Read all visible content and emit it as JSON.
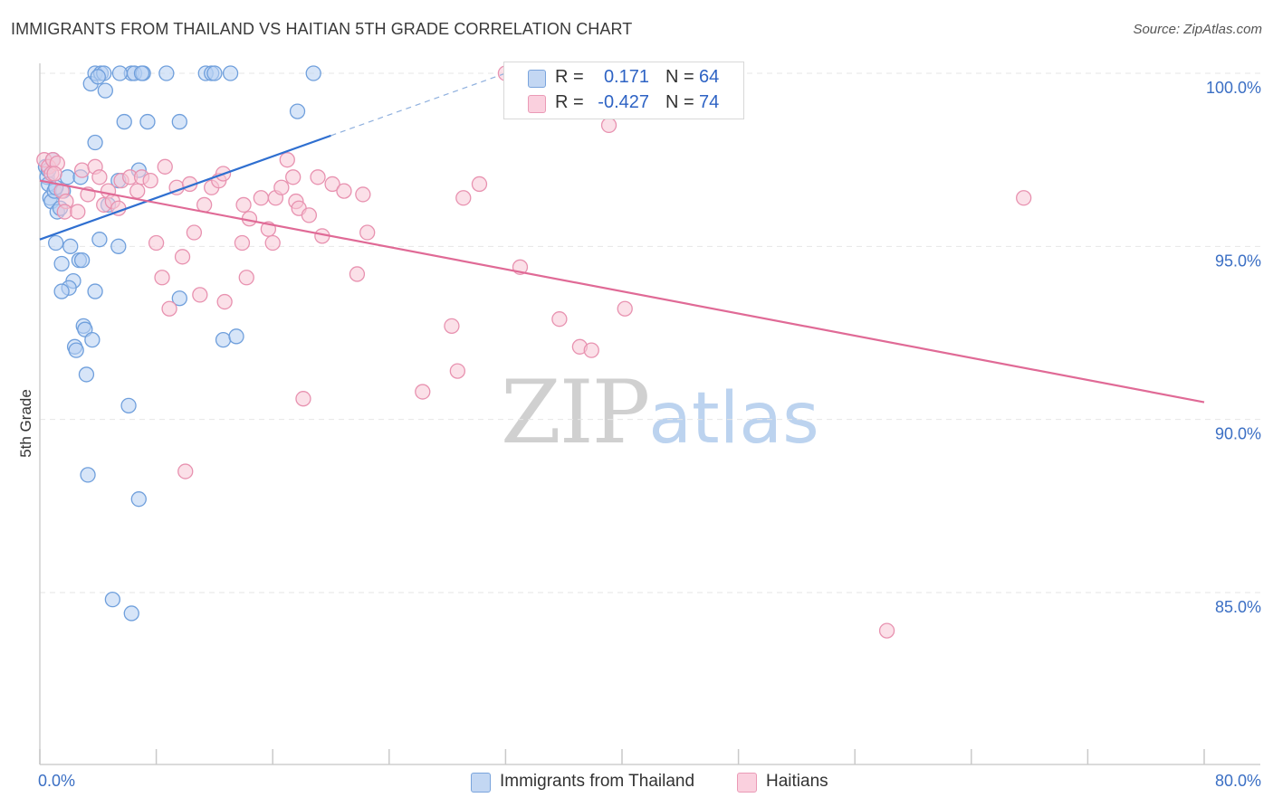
{
  "title": "IMMIGRANTS FROM THAILAND VS HAITIAN 5TH GRADE CORRELATION CHART",
  "source": "Source: ZipAtlas.com",
  "legend": {
    "rows": [
      {
        "r_label": "R =",
        "r_value": "0.171",
        "n_label": "N =",
        "n_value": "64"
      },
      {
        "r_label": "R =",
        "r_value": "-0.427",
        "n_label": "N =",
        "n_value": "74"
      }
    ]
  },
  "bottom_legend": [
    "Immigrants from Thailand",
    "Haitians"
  ],
  "watermark": {
    "zip": "ZIP",
    "atlas": "atlas"
  },
  "colors": {
    "blue_fill": "#b7d0f2",
    "blue_stroke": "#6f9fdc",
    "blue_line": "#2f6fd0",
    "pink_fill": "#f8c6d6",
    "pink_stroke": "#e892b0",
    "pink_line": "#e06a96",
    "grid": "#e6e6e6",
    "axis_text": "#3b6fc4"
  },
  "chart_data": {
    "type": "scatter",
    "title": "IMMIGRANTS FROM THAILAND VS HAITIAN 5TH GRADE CORRELATION CHART",
    "xlabel": "",
    "ylabel": "5th Grade",
    "xlim": [
      0,
      80
    ],
    "ylim": [
      80,
      100.5
    ],
    "x_tick_labels": [
      "0.0%",
      "80.0%"
    ],
    "y_ticks": [
      85,
      90,
      95,
      100
    ],
    "y_tick_labels": [
      "85.0%",
      "90.0%",
      "95.0%",
      "100.0%"
    ],
    "series": [
      {
        "name": "Immigrants from Thailand",
        "color": "#6f9fdc",
        "r": 0.171,
        "n": 64,
        "trend": {
          "x": [
            0,
            20
          ],
          "y": [
            95.2,
            98.2
          ],
          "dashed_to": [
            32,
            100.0
          ]
        },
        "points": [
          [
            0.4,
            97.3
          ],
          [
            0.5,
            97.0
          ],
          [
            0.6,
            96.8
          ],
          [
            0.7,
            96.4
          ],
          [
            0.8,
            96.3
          ],
          [
            0.6,
            97.2
          ],
          [
            1.0,
            96.6
          ],
          [
            1.2,
            96.0
          ],
          [
            1.4,
            96.1
          ],
          [
            1.1,
            95.1
          ],
          [
            1.6,
            96.6
          ],
          [
            1.9,
            97.0
          ],
          [
            2.8,
            97.0
          ],
          [
            1.5,
            94.5
          ],
          [
            2.1,
            95.0
          ],
          [
            2.7,
            94.6
          ],
          [
            2.9,
            94.6
          ],
          [
            2.3,
            94.0
          ],
          [
            2.0,
            93.8
          ],
          [
            1.5,
            93.7
          ],
          [
            3.8,
            93.7
          ],
          [
            3.0,
            92.7
          ],
          [
            3.1,
            92.6
          ],
          [
            3.6,
            92.3
          ],
          [
            2.4,
            92.1
          ],
          [
            2.5,
            92.0
          ],
          [
            3.2,
            91.3
          ],
          [
            4.1,
            95.2
          ],
          [
            5.4,
            95.0
          ],
          [
            3.3,
            88.4
          ],
          [
            6.8,
            87.7
          ],
          [
            5.0,
            84.8
          ],
          [
            6.3,
            84.4
          ],
          [
            6.1,
            90.4
          ],
          [
            9.6,
            93.5
          ],
          [
            12.6,
            92.3
          ],
          [
            13.5,
            92.4
          ],
          [
            3.5,
            99.7
          ],
          [
            3.8,
            100.0
          ],
          [
            4.2,
            100.0
          ],
          [
            4.4,
            100.0
          ],
          [
            6.3,
            100.0
          ],
          [
            6.5,
            100.0
          ],
          [
            7.1,
            100.0
          ],
          [
            8.7,
            100.0
          ],
          [
            11.4,
            100.0
          ],
          [
            11.8,
            100.0
          ],
          [
            13.1,
            100.0
          ],
          [
            18.8,
            100.0
          ],
          [
            4.5,
            99.5
          ],
          [
            5.8,
            98.6
          ],
          [
            7.4,
            98.6
          ],
          [
            9.6,
            98.6
          ],
          [
            17.7,
            98.9
          ],
          [
            3.8,
            98.0
          ],
          [
            6.8,
            97.2
          ],
          [
            5.4,
            96.9
          ],
          [
            4.7,
            96.2
          ],
          [
            1.1,
            96.7
          ],
          [
            0.9,
            97.5
          ],
          [
            5.5,
            100.0
          ],
          [
            4.0,
            99.9
          ],
          [
            7.0,
            100.0
          ],
          [
            12.0,
            100.0
          ]
        ]
      },
      {
        "name": "Haitians",
        "color": "#e892b0",
        "r": -0.427,
        "n": 74,
        "trend": {
          "x": [
            0,
            80
          ],
          "y": [
            96.9,
            90.5
          ]
        },
        "points": [
          [
            0.3,
            97.5
          ],
          [
            0.6,
            97.3
          ],
          [
            0.9,
            97.5
          ],
          [
            1.2,
            97.4
          ],
          [
            0.8,
            97.1
          ],
          [
            1.5,
            96.6
          ],
          [
            1.8,
            96.3
          ],
          [
            1.7,
            96.0
          ],
          [
            2.6,
            96.0
          ],
          [
            2.9,
            97.2
          ],
          [
            3.3,
            96.5
          ],
          [
            3.8,
            97.3
          ],
          [
            4.1,
            97.0
          ],
          [
            4.4,
            96.2
          ],
          [
            4.7,
            96.6
          ],
          [
            5.0,
            96.3
          ],
          [
            5.4,
            96.1
          ],
          [
            5.6,
            96.9
          ],
          [
            6.2,
            97.0
          ],
          [
            6.7,
            96.6
          ],
          [
            7.0,
            97.0
          ],
          [
            7.6,
            96.9
          ],
          [
            8.6,
            97.3
          ],
          [
            9.4,
            96.7
          ],
          [
            10.3,
            96.8
          ],
          [
            11.3,
            96.2
          ],
          [
            11.8,
            96.7
          ],
          [
            12.3,
            96.9
          ],
          [
            12.6,
            97.1
          ],
          [
            14.0,
            96.2
          ],
          [
            14.4,
            95.8
          ],
          [
            15.2,
            96.4
          ],
          [
            15.7,
            95.5
          ],
          [
            16.2,
            96.4
          ],
          [
            16.6,
            96.7
          ],
          [
            17.0,
            97.5
          ],
          [
            17.4,
            97.0
          ],
          [
            17.6,
            96.3
          ],
          [
            17.8,
            96.1
          ],
          [
            18.5,
            95.9
          ],
          [
            19.1,
            97.0
          ],
          [
            19.4,
            95.3
          ],
          [
            20.1,
            96.8
          ],
          [
            20.9,
            96.6
          ],
          [
            22.2,
            96.5
          ],
          [
            22.5,
            95.4
          ],
          [
            8.0,
            95.1
          ],
          [
            9.8,
            94.7
          ],
          [
            10.6,
            95.4
          ],
          [
            13.9,
            95.1
          ],
          [
            16.0,
            95.1
          ],
          [
            8.4,
            94.1
          ],
          [
            14.2,
            94.1
          ],
          [
            21.8,
            94.2
          ],
          [
            8.9,
            93.2
          ],
          [
            11.0,
            93.6
          ],
          [
            12.7,
            93.4
          ],
          [
            29.1,
            96.4
          ],
          [
            30.2,
            96.8
          ],
          [
            33.0,
            94.4
          ],
          [
            28.3,
            92.7
          ],
          [
            35.7,
            92.9
          ],
          [
            37.1,
            92.1
          ],
          [
            37.9,
            92.0
          ],
          [
            40.2,
            93.2
          ],
          [
            28.7,
            91.4
          ],
          [
            26.3,
            90.8
          ],
          [
            18.1,
            90.6
          ],
          [
            10.0,
            88.5
          ],
          [
            58.2,
            83.9
          ],
          [
            39.1,
            98.5
          ],
          [
            67.6,
            96.4
          ],
          [
            32.0,
            100.0
          ],
          [
            1.0,
            97.1
          ]
        ]
      }
    ]
  }
}
